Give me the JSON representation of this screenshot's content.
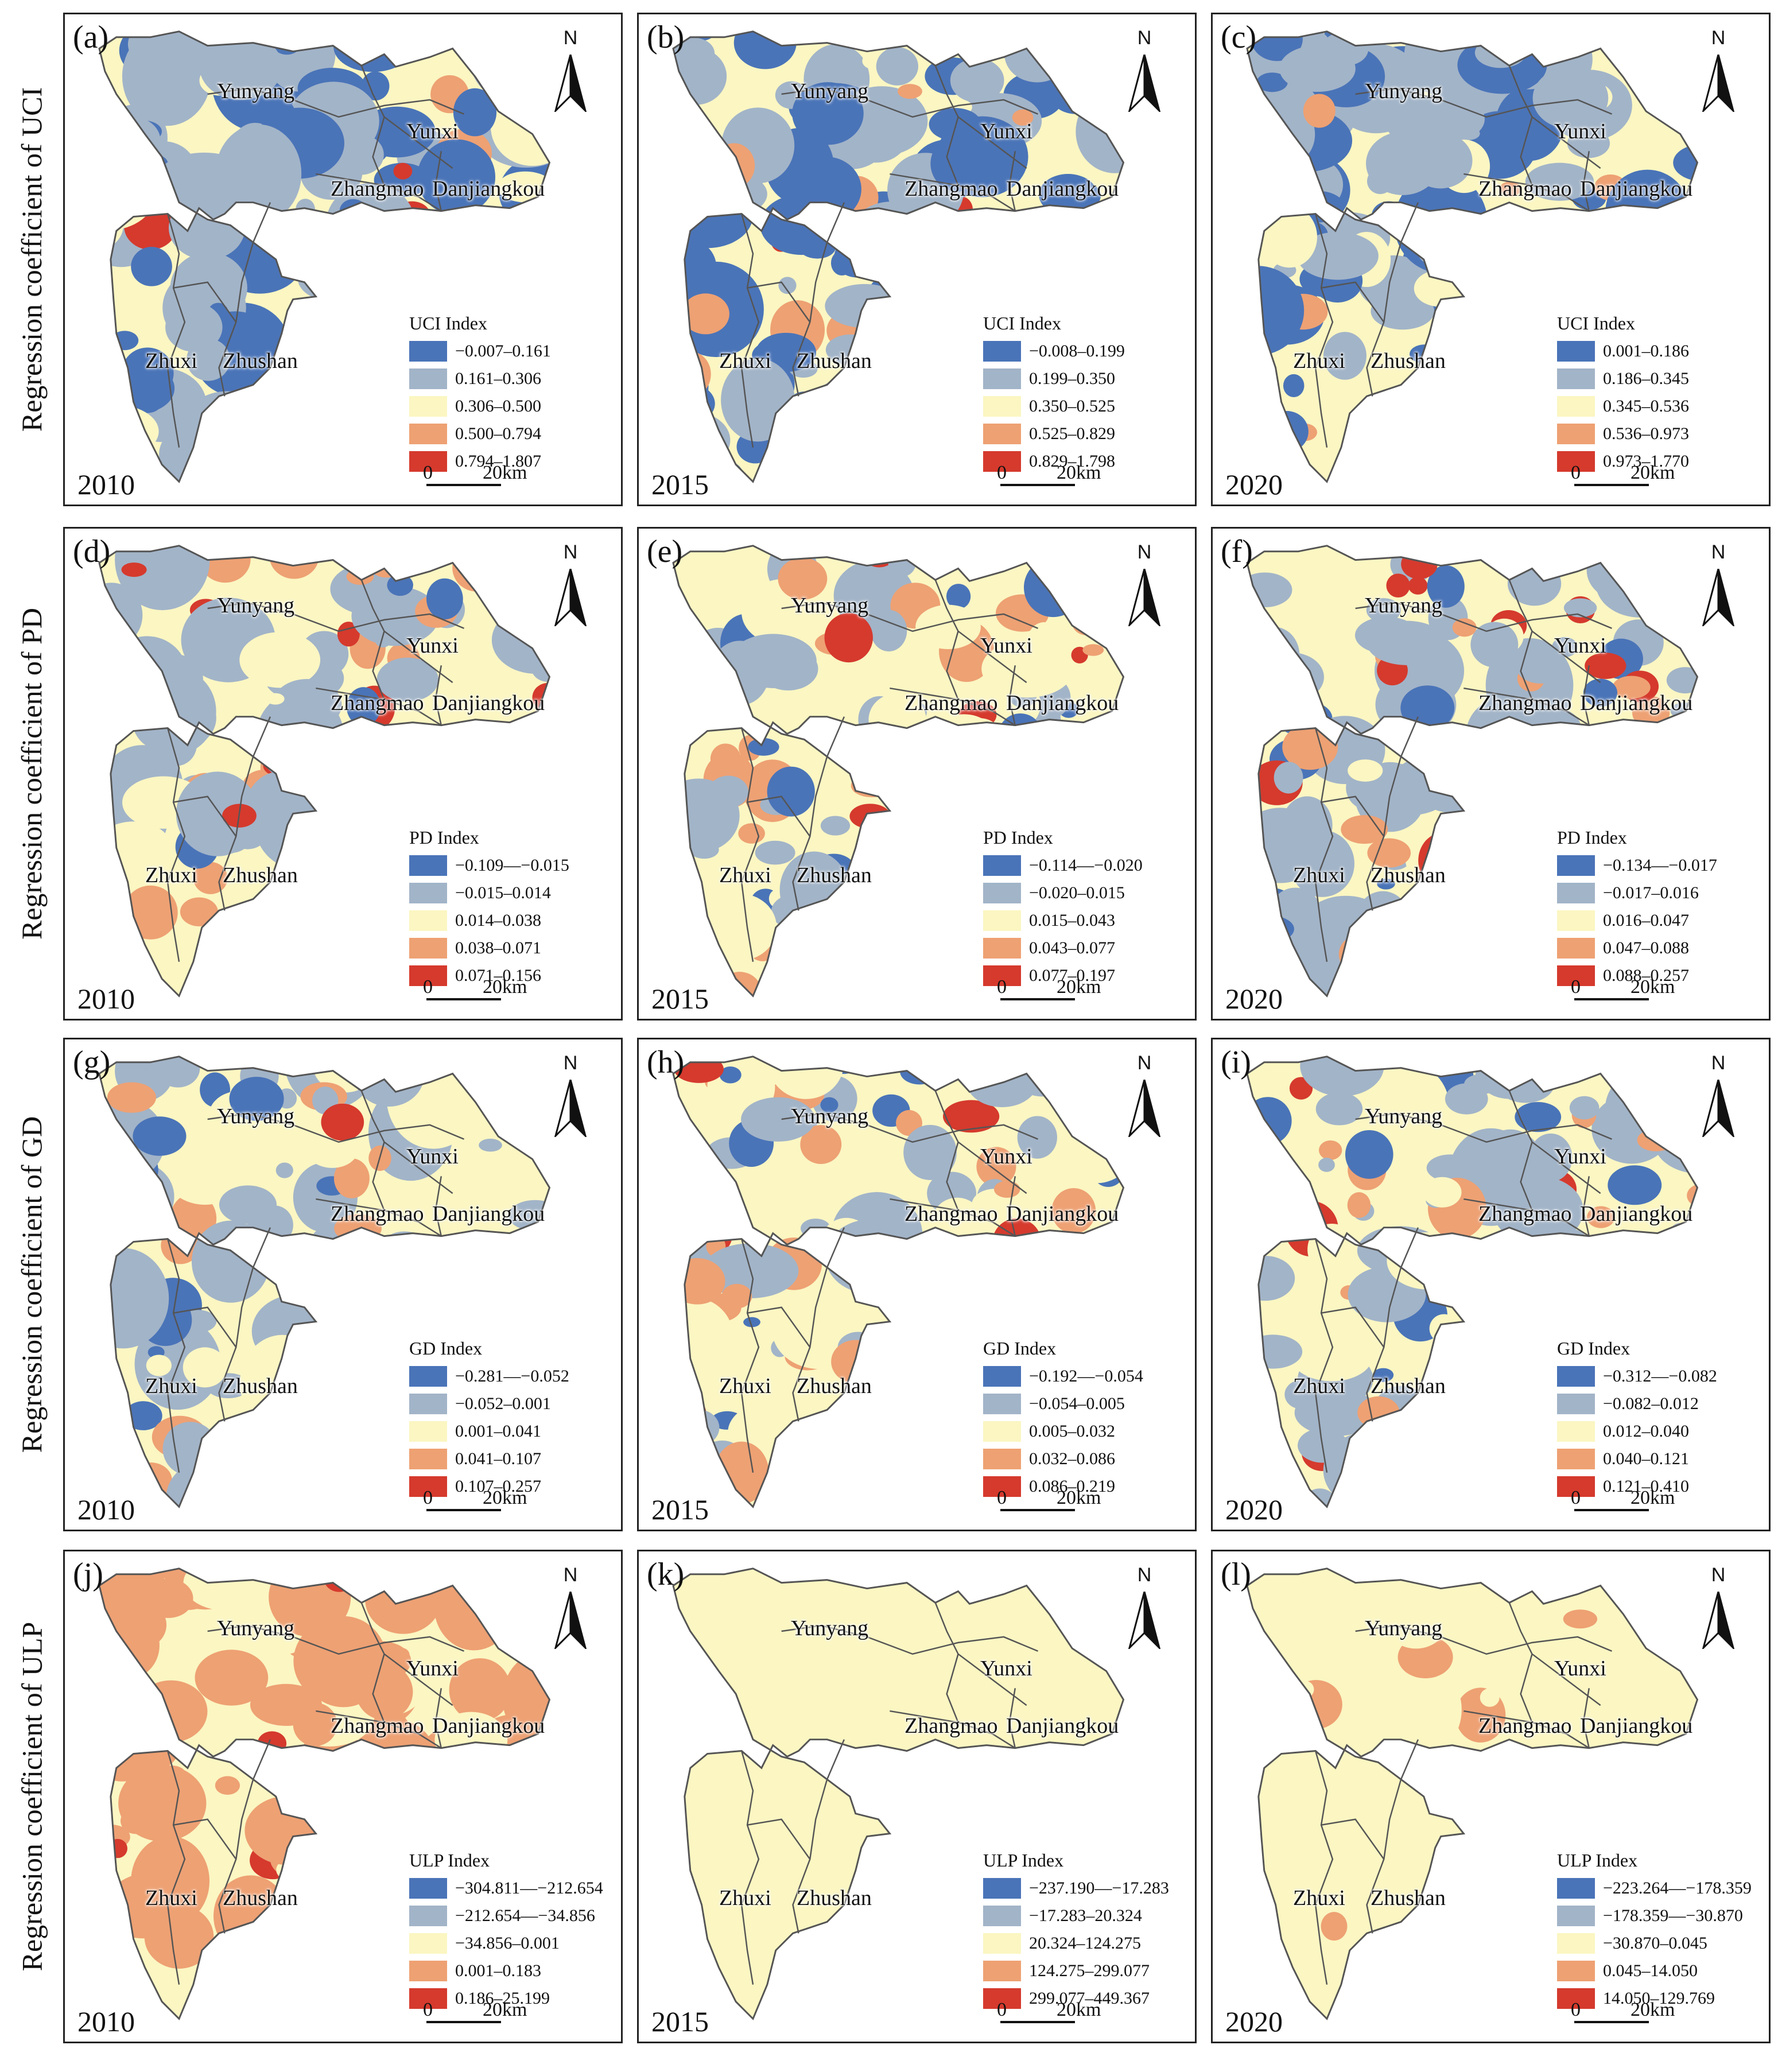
{
  "colors": {
    "blue": "#4a74b8",
    "gray": "#a2b4c8",
    "cream": "#fbf6c2",
    "orange": "#eea173",
    "red": "#d53a2d",
    "border": "#555555"
  },
  "places": [
    "Yunyang",
    "Yunxi",
    "Zhangmao",
    "Danjiangkou",
    "Zhuxi",
    "Zhushan"
  ],
  "north_label": "N",
  "scale": {
    "start": "0",
    "end": "20km"
  },
  "rows": [
    {
      "label": "Regression coefficient of UCI"
    },
    {
      "label": "Regression coefficient of PD"
    },
    {
      "label": "Regression coefficient of GD"
    },
    {
      "label": "Regression coefficient of ULP"
    }
  ],
  "panels": [
    {
      "tag": "(a)",
      "year": "2010",
      "legend_title": "UCI Index",
      "classes": [
        "−0.007–0.161",
        "0.161–0.306",
        "0.306–0.500",
        "0.500–0.794",
        "0.794–1.807"
      ],
      "mix": [
        0.3,
        0.34,
        0.26,
        0.07,
        0.03
      ]
    },
    {
      "tag": "(b)",
      "year": "2015",
      "legend_title": "UCI Index",
      "classes": [
        "−0.008–0.199",
        "0.199–0.350",
        "0.350–0.525",
        "0.525–0.829",
        "0.829–1.798"
      ],
      "mix": [
        0.4,
        0.3,
        0.2,
        0.07,
        0.03
      ]
    },
    {
      "tag": "(c)",
      "year": "2020",
      "legend_title": "UCI Index",
      "classes": [
        "0.001–0.186",
        "0.186–0.345",
        "0.345–0.536",
        "0.536–0.973",
        "0.973–1.770"
      ],
      "mix": [
        0.34,
        0.34,
        0.22,
        0.08,
        0.02
      ]
    },
    {
      "tag": "(d)",
      "year": "2010",
      "legend_title": "PD Index",
      "classes": [
        "−0.109—−0.015",
        "−0.015–0.014",
        "0.014–0.038",
        "0.038–0.071",
        "0.071–0.156"
      ],
      "mix": [
        0.06,
        0.36,
        0.36,
        0.16,
        0.06
      ]
    },
    {
      "tag": "(e)",
      "year": "2015",
      "legend_title": "PD Index",
      "classes": [
        "−0.114—−0.020",
        "−0.020–0.015",
        "0.015–0.043",
        "0.043–0.077",
        "0.077–0.197"
      ],
      "mix": [
        0.06,
        0.34,
        0.38,
        0.16,
        0.06
      ]
    },
    {
      "tag": "(f)",
      "year": "2020",
      "legend_title": "PD Index",
      "classes": [
        "−0.134—−0.017",
        "−0.017–0.016",
        "0.016–0.047",
        "0.047–0.088",
        "0.088–0.257"
      ],
      "mix": [
        0.1,
        0.34,
        0.34,
        0.12,
        0.1
      ]
    },
    {
      "tag": "(g)",
      "year": "2010",
      "legend_title": "GD Index",
      "classes": [
        "−0.281—−0.052",
        "−0.052–0.001",
        "0.001–0.041",
        "0.041–0.107",
        "0.107–0.257"
      ],
      "mix": [
        0.08,
        0.38,
        0.34,
        0.14,
        0.06
      ]
    },
    {
      "tag": "(h)",
      "year": "2015",
      "legend_title": "GD Index",
      "classes": [
        "−0.192—−0.054",
        "−0.054–0.005",
        "0.005–0.032",
        "0.032–0.086",
        "0.086–0.219"
      ],
      "mix": [
        0.1,
        0.28,
        0.36,
        0.16,
        0.1
      ]
    },
    {
      "tag": "(i)",
      "year": "2020",
      "legend_title": "GD Index",
      "classes": [
        "−0.312—−0.082",
        "−0.082–0.012",
        "0.012–0.040",
        "0.040–0.121",
        "0.121–0.410"
      ],
      "mix": [
        0.12,
        0.3,
        0.36,
        0.12,
        0.1
      ]
    },
    {
      "tag": "(j)",
      "year": "2010",
      "legend_title": "ULP Index",
      "classes": [
        "−304.811—−212.654",
        "−212.654—−34.856",
        "−34.856–0.001",
        "0.001–0.183",
        "0.186–25.199"
      ],
      "mix": [
        0.0,
        0.01,
        0.45,
        0.5,
        0.04
      ]
    },
    {
      "tag": "(k)",
      "year": "2015",
      "legend_title": "ULP Index",
      "classes": [
        "−237.190—−17.283",
        "−17.283–20.324",
        "20.324–124.275",
        "124.275–299.077",
        "299.077–449.367"
      ],
      "mix": [
        0.0,
        0.005,
        0.995,
        0.0,
        0.0
      ]
    },
    {
      "tag": "(l)",
      "year": "2020",
      "legend_title": "ULP Index",
      "classes": [
        "−223.264—−178.359",
        "−178.359—−30.870",
        "−30.870–0.045",
        "0.045–14.050",
        "14.050–129.769"
      ],
      "mix": [
        0.0,
        0.0,
        0.93,
        0.07,
        0.0
      ]
    }
  ]
}
